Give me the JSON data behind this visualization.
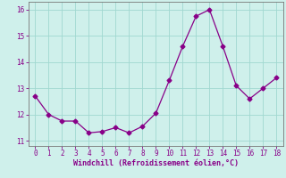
{
  "x": [
    0,
    1,
    2,
    3,
    4,
    5,
    6,
    7,
    8,
    9,
    10,
    11,
    12,
    13,
    14,
    15,
    16,
    17,
    18
  ],
  "y": [
    12.7,
    12.0,
    11.75,
    11.75,
    11.3,
    11.35,
    11.5,
    11.3,
    11.55,
    12.05,
    13.3,
    14.6,
    15.75,
    16.0,
    14.6,
    13.1,
    12.6,
    13.0,
    13.4
  ],
  "line_color": "#880088",
  "marker": "D",
  "marker_size": 2.5,
  "bg_color": "#cff0eb",
  "grid_color": "#a0d8d0",
  "xlabel": "Windchill (Refroidissement éolien,°C)",
  "xlabel_color": "#880088",
  "tick_color": "#880088",
  "ylim": [
    10.8,
    16.3
  ],
  "xlim": [
    -0.5,
    18.5
  ],
  "yticks": [
    11,
    12,
    13,
    14,
    15,
    16
  ],
  "xticks": [
    0,
    1,
    2,
    3,
    4,
    5,
    6,
    7,
    8,
    9,
    10,
    11,
    12,
    13,
    14,
    15,
    16,
    17,
    18
  ],
  "spine_color": "#777777",
  "figsize": [
    3.2,
    2.0
  ],
  "dpi": 100
}
